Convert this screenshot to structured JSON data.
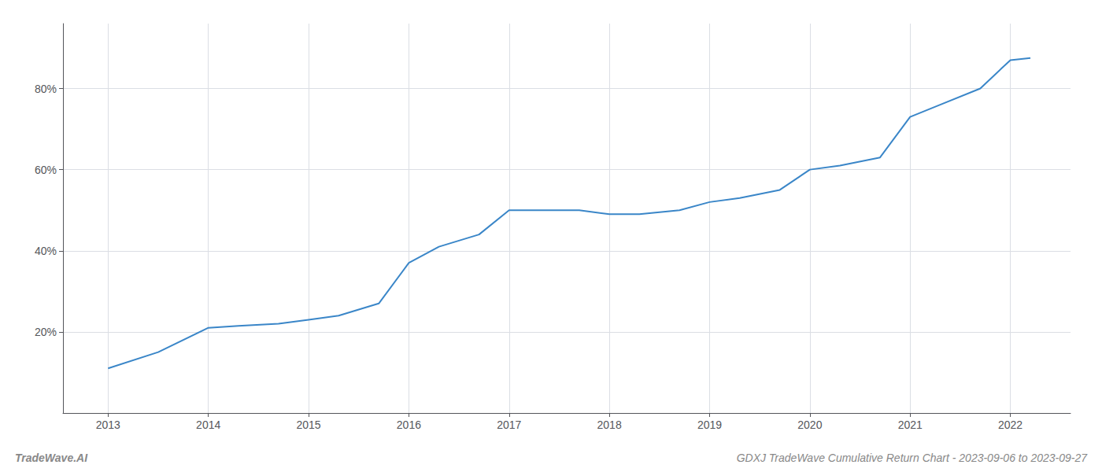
{
  "chart_data": {
    "type": "line",
    "title": "GDXJ TradeWave Cumulative Return Chart - 2023-09-06 to 2023-09-27",
    "annotations": [
      "TradeWave.AI"
    ],
    "x": [
      2013,
      2013.5,
      2014,
      2014.3,
      2014.7,
      2015,
      2015.3,
      2015.7,
      2016,
      2016.3,
      2016.7,
      2017,
      2017.3,
      2017.7,
      2018,
      2018.3,
      2018.7,
      2019,
      2019.3,
      2019.7,
      2020,
      2020.3,
      2020.7,
      2021,
      2021.3,
      2021.7,
      2022,
      2022.2
    ],
    "values": [
      11,
      15,
      21,
      21.5,
      22,
      23,
      24,
      27,
      37,
      41,
      44,
      50,
      50,
      50,
      49,
      49,
      50,
      52,
      53,
      55,
      60,
      61,
      63,
      73,
      76,
      80,
      87,
      87.5
    ],
    "color": "#3a86c8",
    "xlim": [
      2012.55,
      2022.6
    ],
    "ylim": [
      0,
      96
    ],
    "xticks": [
      2013,
      2014,
      2015,
      2016,
      2017,
      2018,
      2019,
      2020,
      2021,
      2022
    ],
    "yticks": [
      {
        "value": 20,
        "label": "20%"
      },
      {
        "value": 40,
        "label": "40%"
      },
      {
        "value": 60,
        "label": "60%"
      },
      {
        "value": 80,
        "label": "80%"
      }
    ],
    "grid": true
  }
}
